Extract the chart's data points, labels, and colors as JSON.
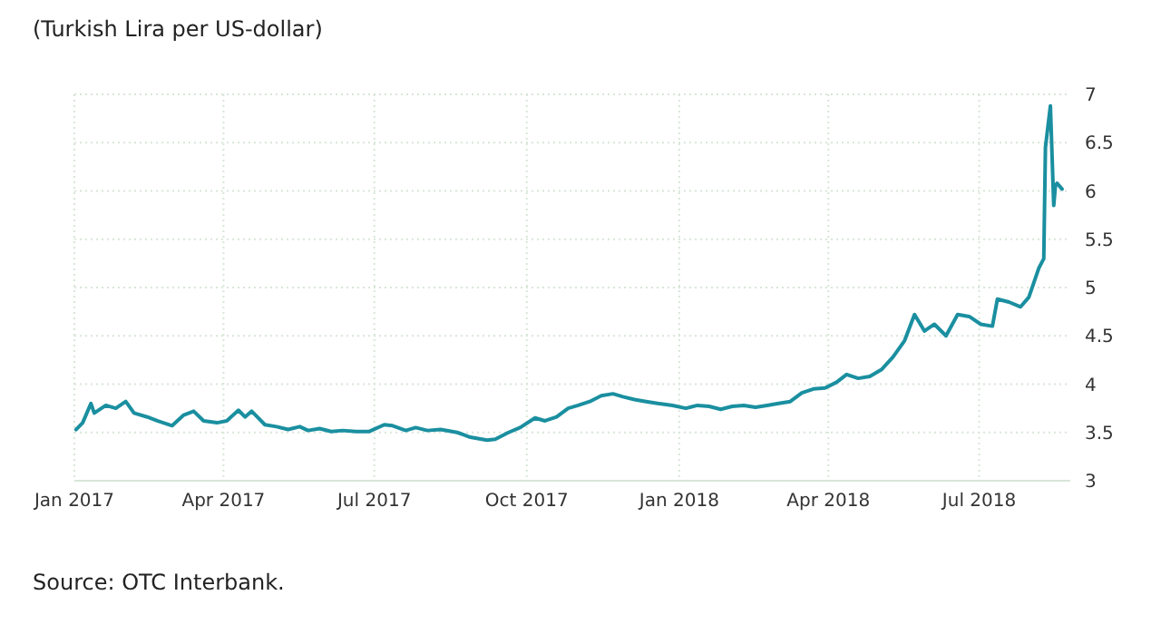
{
  "chart_data": {
    "type": "line",
    "title": "(Turkish Lira per US-dollar)",
    "annotations": [
      "Source: OTC Interbank."
    ],
    "x": [
      "2017-01-02",
      "2017-01-06",
      "2017-01-11",
      "2017-01-13",
      "2017-01-20",
      "2017-01-26",
      "2017-02-01",
      "2017-02-06",
      "2017-02-14",
      "2017-02-20",
      "2017-03-01",
      "2017-03-08",
      "2017-03-14",
      "2017-03-20",
      "2017-03-28",
      "2017-04-03",
      "2017-04-10",
      "2017-04-14",
      "2017-04-18",
      "2017-04-26",
      "2017-05-03",
      "2017-05-10",
      "2017-05-17",
      "2017-05-22",
      "2017-05-29",
      "2017-06-05",
      "2017-06-12",
      "2017-06-20",
      "2017-06-28",
      "2017-07-07",
      "2017-07-12",
      "2017-07-20",
      "2017-07-26",
      "2017-08-02",
      "2017-08-10",
      "2017-08-20",
      "2017-08-28",
      "2017-09-07",
      "2017-09-12",
      "2017-09-20",
      "2017-09-27",
      "2017-10-06",
      "2017-10-12",
      "2017-10-19",
      "2017-10-26",
      "2017-11-01",
      "2017-11-08",
      "2017-11-15",
      "2017-11-22",
      "2017-11-28",
      "2017-12-05",
      "2017-12-12",
      "2017-12-19",
      "2017-12-28",
      "2018-01-05",
      "2018-01-12",
      "2018-01-19",
      "2018-01-26",
      "2018-02-02",
      "2018-02-09",
      "2018-02-16",
      "2018-02-23",
      "2018-03-02",
      "2018-03-09",
      "2018-03-16",
      "2018-03-23",
      "2018-03-30",
      "2018-04-06",
      "2018-04-12",
      "2018-04-19",
      "2018-04-26",
      "2018-05-03",
      "2018-05-10",
      "2018-05-17",
      "2018-05-23",
      "2018-05-29",
      "2018-06-04",
      "2018-06-11",
      "2018-06-18",
      "2018-06-25",
      "2018-07-02",
      "2018-07-09",
      "2018-07-12",
      "2018-07-19",
      "2018-07-26",
      "2018-07-31",
      "2018-08-06",
      "2018-08-09",
      "2018-08-10",
      "2018-08-13",
      "2018-08-15",
      "2018-08-16",
      "2018-08-17",
      "2018-08-20"
    ],
    "series": [
      {
        "color": "#1a8fa0",
        "values": [
          3.53,
          3.6,
          3.8,
          3.7,
          3.78,
          3.75,
          3.82,
          3.7,
          3.66,
          3.62,
          3.57,
          3.68,
          3.72,
          3.62,
          3.6,
          3.62,
          3.73,
          3.66,
          3.72,
          3.58,
          3.56,
          3.53,
          3.56,
          3.52,
          3.54,
          3.51,
          3.52,
          3.51,
          3.51,
          3.58,
          3.57,
          3.52,
          3.55,
          3.52,
          3.53,
          3.5,
          3.45,
          3.42,
          3.43,
          3.5,
          3.55,
          3.65,
          3.62,
          3.66,
          3.75,
          3.78,
          3.82,
          3.88,
          3.9,
          3.87,
          3.84,
          3.82,
          3.8,
          3.78,
          3.75,
          3.78,
          3.77,
          3.74,
          3.77,
          3.78,
          3.76,
          3.78,
          3.8,
          3.82,
          3.91,
          3.95,
          3.96,
          4.02,
          4.1,
          4.06,
          4.08,
          4.15,
          4.28,
          4.45,
          4.72,
          4.55,
          4.62,
          4.5,
          4.72,
          4.7,
          4.62,
          4.6,
          4.88,
          4.85,
          4.8,
          4.9,
          5.2,
          5.3,
          6.45,
          6.88,
          5.85,
          6.05,
          6.08,
          6.02
        ]
      }
    ],
    "xlim": [
      "2017-01-01",
      "2018-08-25"
    ],
    "xticks": [
      {
        "value": "2017-01-01",
        "label": "Jan 2017"
      },
      {
        "value": "2017-04-01",
        "label": "Apr 2017"
      },
      {
        "value": "2017-07-01",
        "label": "Jul 2017"
      },
      {
        "value": "2017-10-01",
        "label": "Oct 2017"
      },
      {
        "value": "2018-01-01",
        "label": "Jan 2018"
      },
      {
        "value": "2018-04-01",
        "label": "Apr 2018"
      },
      {
        "value": "2018-07-01",
        "label": "Jul 2018"
      }
    ],
    "ylim": [
      3,
      7
    ],
    "yticks": [
      3,
      3.5,
      4,
      4.5,
      5,
      5.5,
      6,
      6.5,
      7
    ],
    "grid": true,
    "line_style": "solid"
  }
}
